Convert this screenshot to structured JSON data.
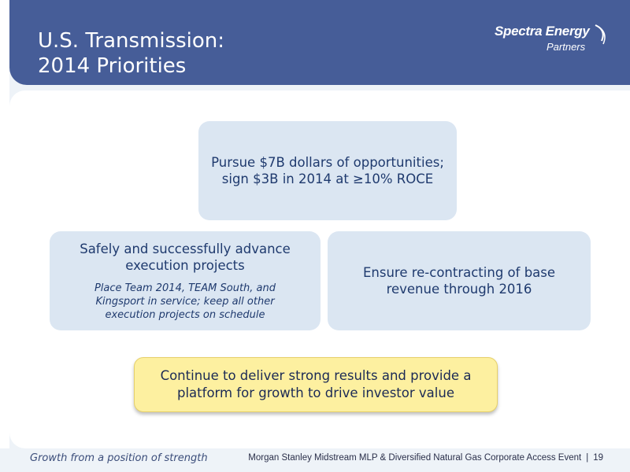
{
  "header": {
    "title_line1": "U.S. Transmission:",
    "title_line2": "2014 Priorities"
  },
  "logo": {
    "main": "Spectra Energy",
    "sub": "Partners",
    "mark": "LP"
  },
  "priorities": {
    "top": "Pursue $7B dollars of opportunities; sign $3B in 2014 at ≥10% ROCE",
    "left_main": "Safely and successfully advance execution projects",
    "left_sub": "Place Team 2014, TEAM South, and Kingsport in service; keep all other execution projects on schedule",
    "right": "Ensure re-contracting of base revenue through 2016",
    "bottom": "Continue to deliver strong results and provide a platform for growth to drive investor value"
  },
  "footer": {
    "tagline": "Growth from a position of strength",
    "event": "Morgan Stanley Midstream MLP & Diversified Natural Gas Corporate Access Event",
    "separator": "|",
    "page_number": "19"
  },
  "colors": {
    "header_band": "#465d98",
    "box_fill": "#dbe6f2",
    "highlight_fill": "#fdf0a0",
    "text_dark_blue": "#1f3a6e"
  }
}
